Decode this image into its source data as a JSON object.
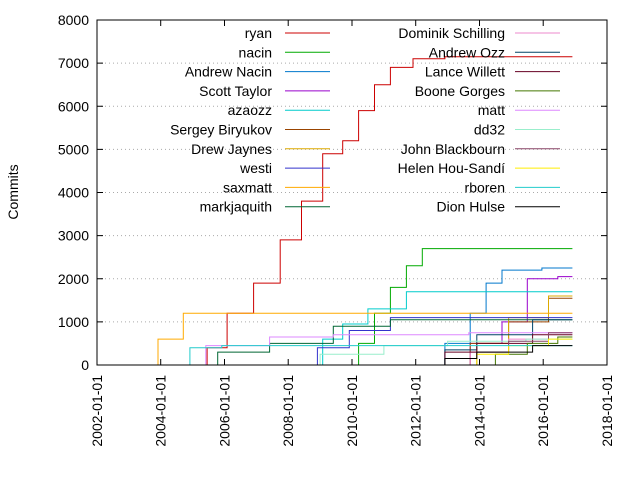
{
  "chart_data": {
    "type": "line",
    "title": "",
    "xlabel": "",
    "ylabel": "Commits",
    "xlim": [
      "2002-01-01",
      "2018-01-01"
    ],
    "ylim": [
      0,
      8000
    ],
    "x_ticks": [
      "2002-01-01",
      "2004-01-01",
      "2006-01-01",
      "2008-01-01",
      "2010-01-01",
      "2012-01-01",
      "2014-01-01",
      "2016-01-01",
      "2018-01-01"
    ],
    "y_ticks": [
      0,
      1000,
      2000,
      3000,
      4000,
      5000,
      6000,
      7000,
      8000
    ],
    "grid": "dotted horizontal",
    "legend_position": "top, two columns",
    "series": [
      {
        "name": "ryan",
        "color": "#cc0000",
        "x": [
          "2005-03-01",
          "2005-10-01",
          "2006-06-01",
          "2007-06-01",
          "2008-02-01",
          "2008-10-01",
          "2009-06-01",
          "2010-01-01",
          "2010-06-01",
          "2011-01-01",
          "2011-06-01",
          "2012-06-01",
          "2013-06-01",
          "2016-12-01"
        ],
        "y": [
          0,
          400,
          1200,
          1900,
          2900,
          3800,
          4900,
          5200,
          5900,
          6500,
          6900,
          7100,
          7150,
          7150
        ]
      },
      {
        "name": "nacin",
        "color": "#00aa00",
        "x": [
          "2010-01-01",
          "2010-06-01",
          "2011-01-01",
          "2011-06-01",
          "2012-01-01",
          "2012-06-01",
          "2016-12-01"
        ],
        "y": [
          0,
          500,
          1200,
          1800,
          2300,
          2700,
          2700
        ]
      },
      {
        "name": "Andrew Nacin",
        "color": "#0077cc",
        "x": [
          "2012-06-01",
          "2013-06-01",
          "2014-01-01",
          "2014-06-01",
          "2015-01-01",
          "2016-12-01"
        ],
        "y": [
          0,
          500,
          1200,
          1900,
          2200,
          2250
        ]
      },
      {
        "name": "Scott Taylor",
        "color": "#9900cc",
        "x": [
          "2013-01-01",
          "2014-06-01",
          "2015-01-01",
          "2016-01-01",
          "2016-12-01"
        ],
        "y": [
          0,
          500,
          1000,
          2000,
          2050
        ]
      },
      {
        "name": "azaozz",
        "color": "#00cccc",
        "x": [
          "2008-10-01",
          "2009-06-01",
          "2010-01-01",
          "2011-01-01",
          "2012-06-01",
          "2016-12-01"
        ],
        "y": [
          0,
          600,
          950,
          1300,
          1700,
          1700
        ]
      },
      {
        "name": "Sergey Biryukov",
        "color": "#994400",
        "x": [
          "2013-01-01",
          "2014-06-01",
          "2015-06-01",
          "2016-12-01"
        ],
        "y": [
          0,
          500,
          1000,
          1550
        ]
      },
      {
        "name": "Drew Jaynes",
        "color": "#ddaa00",
        "x": [
          "2013-06-01",
          "2014-06-01",
          "2015-06-01",
          "2016-12-01"
        ],
        "y": [
          0,
          500,
          1100,
          1600
        ]
      },
      {
        "name": "westi",
        "color": "#3333cc",
        "x": [
          "2008-06-01",
          "2009-06-01",
          "2010-06-01",
          "2012-01-01",
          "2016-12-01"
        ],
        "y": [
          0,
          400,
          800,
          1100,
          1100
        ]
      },
      {
        "name": "saxmatt",
        "color": "#ffaa00",
        "x": [
          "2003-06-01",
          "2004-06-01",
          "2005-01-01",
          "2016-12-01"
        ],
        "y": [
          0,
          600,
          1200,
          1200
        ]
      },
      {
        "name": "markjaquith",
        "color": "#006633",
        "x": [
          "2005-03-01",
          "2006-06-01",
          "2008-06-01",
          "2010-06-01",
          "2012-01-01",
          "2016-12-01"
        ],
        "y": [
          0,
          300,
          500,
          900,
          1050,
          1050
        ]
      },
      {
        "name": "Dominik Schilling",
        "color": "#ee88cc",
        "x": [
          "2013-01-01",
          "2014-06-01",
          "2015-06-01",
          "2016-12-01"
        ],
        "y": [
          0,
          300,
          600,
          750
        ]
      },
      {
        "name": "Andrew Ozz",
        "color": "#004466",
        "x": [
          "2012-06-01",
          "2013-06-01",
          "2014-06-01",
          "2016-12-01"
        ],
        "y": [
          0,
          350,
          700,
          1050
        ]
      },
      {
        "name": "Lance Willett",
        "color": "#660022",
        "x": [
          "2012-06-01",
          "2013-06-01",
          "2014-06-01",
          "2016-12-01"
        ],
        "y": [
          0,
          300,
          500,
          700
        ]
      },
      {
        "name": "Boone Gorges",
        "color": "#447700",
        "x": [
          "2014-01-01",
          "2015-01-01",
          "2016-01-01",
          "2016-12-01"
        ],
        "y": [
          0,
          250,
          500,
          650
        ]
      },
      {
        "name": "matt",
        "color": "#dd88ff",
        "x": [
          "2004-06-01",
          "2006-06-01",
          "2008-06-01",
          "2010-06-01",
          "2016-12-01"
        ],
        "y": [
          0,
          450,
          650,
          700,
          750
        ]
      },
      {
        "name": "dd32",
        "color": "#99eecc",
        "x": [
          "2008-01-01",
          "2010-01-01",
          "2012-01-01",
          "2014-01-01",
          "2016-12-01"
        ],
        "y": [
          0,
          250,
          450,
          550,
          600
        ]
      },
      {
        "name": "John Blackbourn",
        "color": "#884466",
        "x": [
          "2013-06-01",
          "2014-06-01",
          "2015-06-01",
          "2016-12-01"
        ],
        "y": [
          0,
          300,
          550,
          750
        ]
      },
      {
        "name": "Helen Hou-Sandí",
        "color": "#ffee00",
        "x": [
          "2013-06-01",
          "2014-06-01",
          "2015-06-01",
          "2016-12-01"
        ],
        "y": [
          0,
          250,
          450,
          600
        ]
      },
      {
        "name": "rboren",
        "color": "#22cccc",
        "x": [
          "2004-06-01",
          "2005-06-01",
          "2006-06-01",
          "2016-12-01"
        ],
        "y": [
          0,
          400,
          450,
          450
        ]
      },
      {
        "name": "Dion Hulse",
        "color": "#000000",
        "x": [
          "2012-06-01",
          "2013-06-01",
          "2014-06-01",
          "2016-12-01"
        ],
        "y": [
          0,
          150,
          300,
          450
        ]
      }
    ]
  }
}
